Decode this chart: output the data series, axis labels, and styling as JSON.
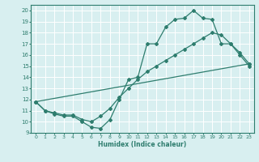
{
  "line1_x": [
    0,
    1,
    2,
    3,
    4,
    5,
    6,
    7,
    8,
    9,
    10,
    11,
    12,
    13,
    14,
    15,
    16,
    17,
    18,
    19,
    20,
    21,
    22,
    23
  ],
  "line1_y": [
    11.8,
    11.0,
    10.7,
    10.5,
    10.5,
    10.0,
    9.5,
    9.4,
    10.2,
    12.0,
    13.8,
    14.0,
    17.0,
    17.0,
    18.5,
    19.2,
    19.3,
    20.0,
    19.3,
    19.2,
    17.0,
    17.0,
    16.0,
    15.0
  ],
  "line2_x": [
    0,
    1,
    2,
    3,
    4,
    5,
    6,
    7,
    8,
    9,
    10,
    11,
    12,
    13,
    14,
    15,
    16,
    17,
    18,
    19,
    20,
    21,
    22,
    23
  ],
  "line2_y": [
    11.8,
    11.0,
    10.8,
    10.6,
    10.6,
    10.2,
    10.0,
    10.5,
    11.2,
    12.2,
    13.0,
    13.8,
    14.5,
    15.0,
    15.5,
    16.0,
    16.5,
    17.0,
    17.5,
    18.0,
    17.8,
    17.0,
    16.2,
    15.2
  ],
  "line3_x": [
    0,
    23
  ],
  "line3_y": [
    11.8,
    15.2
  ],
  "color": "#2e7d6e",
  "bg_color": "#d8eff0",
  "grid_color": "#ffffff",
  "xlabel": "Humidex (Indice chaleur)",
  "xlim": [
    -0.5,
    23.5
  ],
  "ylim": [
    9,
    20.5
  ],
  "yticks": [
    9,
    10,
    11,
    12,
    13,
    14,
    15,
    16,
    17,
    18,
    19,
    20
  ],
  "xticks": [
    0,
    1,
    2,
    3,
    4,
    5,
    6,
    7,
    8,
    9,
    10,
    11,
    12,
    13,
    14,
    15,
    16,
    17,
    18,
    19,
    20,
    21,
    22,
    23
  ],
  "marker": "D",
  "markersize": 2.0,
  "linewidth": 0.9
}
